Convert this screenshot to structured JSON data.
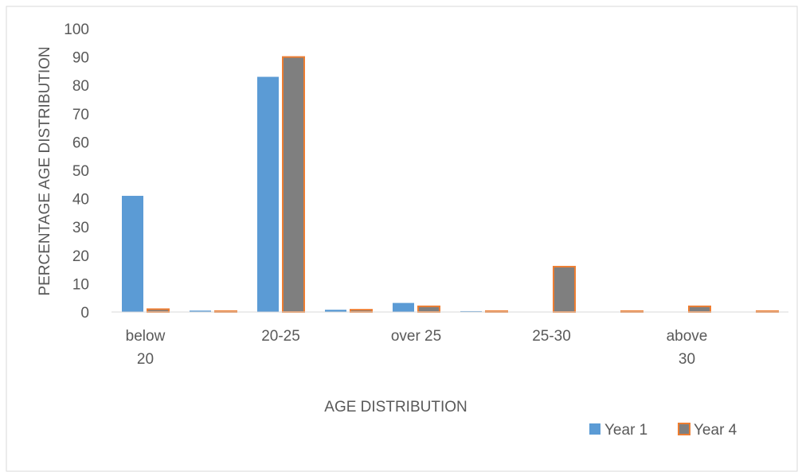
{
  "chart_data": {
    "type": "bar",
    "xlabel": "AGE DISTRIBUTION",
    "ylabel": "PERCENTAGE AGE DISTRIBUTION",
    "ylim": [
      0,
      100
    ],
    "yticks": [
      0,
      10,
      20,
      30,
      40,
      50,
      60,
      70,
      80,
      90,
      100
    ],
    "slots": 10,
    "category_labels": [
      {
        "slot": 0,
        "lines": [
          "below",
          "20"
        ]
      },
      {
        "slot": 2,
        "lines": [
          "20-25"
        ]
      },
      {
        "slot": 4,
        "lines": [
          "over 25"
        ]
      },
      {
        "slot": 6,
        "lines": [
          "25-30"
        ]
      },
      {
        "slot": 8,
        "lines": [
          "above",
          "30"
        ]
      }
    ],
    "series": [
      {
        "name": "Year 1",
        "values": [
          41,
          0.5,
          83,
          0.8,
          3.2,
          0.3,
          0,
          0,
          0,
          0
        ],
        "fill": "#5b9bd5",
        "stroke": "#5b9bd5"
      },
      {
        "name": "Year 4",
        "values": [
          1,
          0.3,
          90,
          0.8,
          2,
          0.3,
          16,
          0.3,
          2,
          0.3
        ],
        "fill": "#7f7f7f",
        "stroke": "#ed7d31"
      }
    ],
    "legend_position": "bottom-right",
    "grid": false
  }
}
